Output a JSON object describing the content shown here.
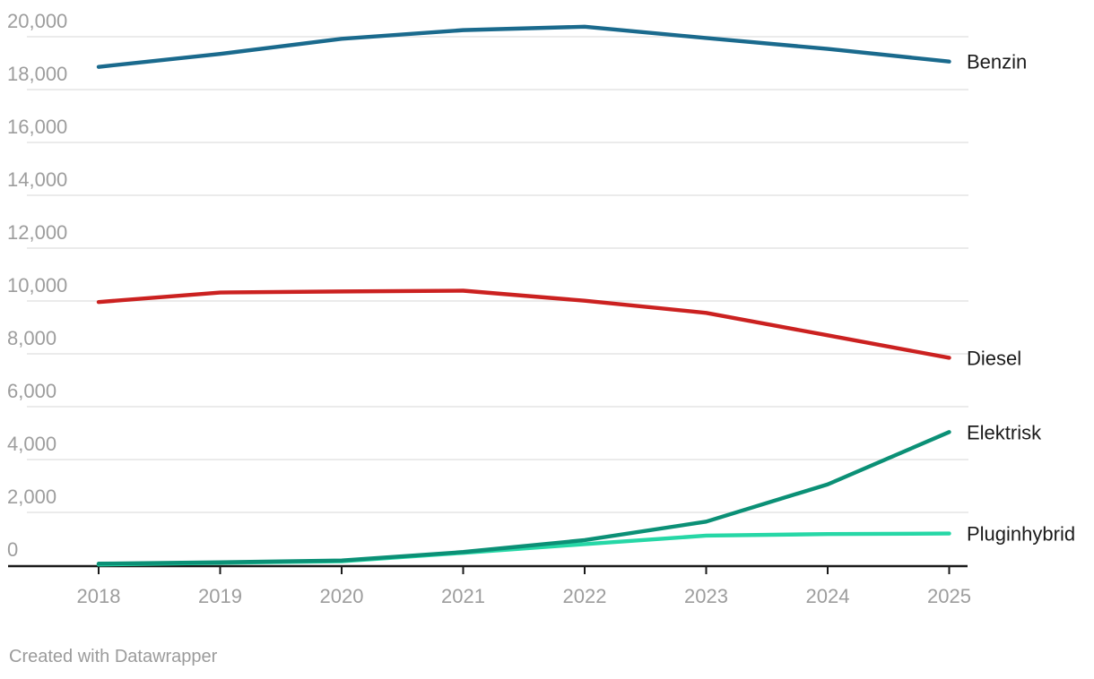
{
  "chart_data": {
    "type": "line",
    "title": "",
    "xlabel": "",
    "ylabel": "",
    "x": [
      2018,
      2019,
      2020,
      2021,
      2022,
      2023,
      2024,
      2025
    ],
    "x_tick_labels": [
      "2018",
      "2019",
      "2020",
      "2021",
      "2022",
      "2023",
      "2024",
      "2025"
    ],
    "ylim": [
      0,
      20000
    ],
    "grid": true,
    "legend_position": "labels-at-right-line-ends",
    "y_ticks": [
      {
        "value": 0,
        "label": "0"
      },
      {
        "value": 2000,
        "label": "2,000"
      },
      {
        "value": 4000,
        "label": "4,000"
      },
      {
        "value": 6000,
        "label": "6,000"
      },
      {
        "value": 8000,
        "label": "8,000"
      },
      {
        "value": 10000,
        "label": "10,000"
      },
      {
        "value": 12000,
        "label": "12,000"
      },
      {
        "value": 14000,
        "label": "14,000"
      },
      {
        "value": 16000,
        "label": "16,000"
      },
      {
        "value": 18000,
        "label": "18,000"
      },
      {
        "value": 20000,
        "label": "20,000"
      }
    ],
    "series": [
      {
        "name": "Benzin",
        "color": "#1a6a8d",
        "values": [
          18860,
          19350,
          19920,
          20250,
          20380,
          19950,
          19540,
          19060
        ]
      },
      {
        "name": "Diesel",
        "color": "#cb2120",
        "values": [
          9960,
          10320,
          10360,
          10390,
          10010,
          9550,
          8700,
          7850
        ]
      },
      {
        "name": "Elektrisk",
        "color": "#0b9076",
        "values": [
          60,
          110,
          180,
          500,
          950,
          1650,
          3060,
          5040
        ]
      },
      {
        "name": "Pluginhybrid",
        "color": "#26d7a6",
        "values": [
          30,
          90,
          150,
          470,
          800,
          1120,
          1180,
          1200
        ]
      }
    ],
    "colors": {
      "gridline": "#ebebeb",
      "axis": "#1a1a1a",
      "tick_label": "#9d9d9d",
      "series_label": "#1a1a1a"
    }
  },
  "footer": {
    "credit": "Created with Datawrapper"
  }
}
